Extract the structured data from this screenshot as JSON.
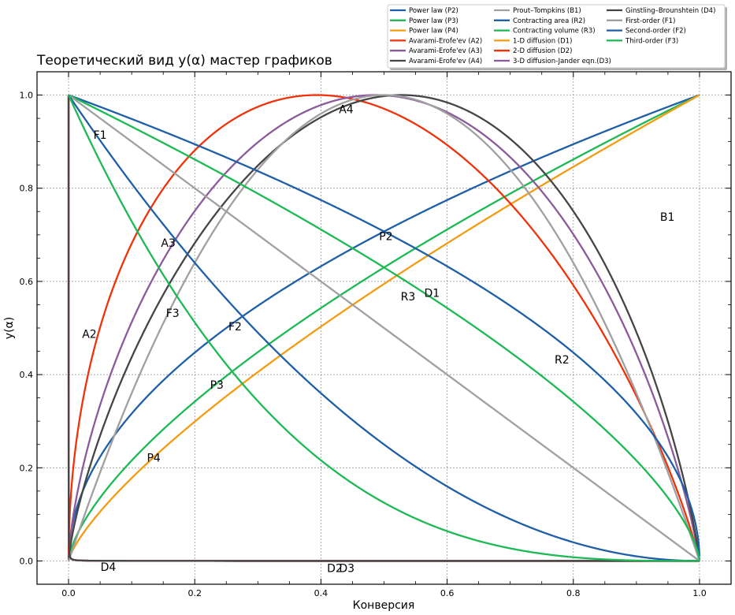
{
  "chart_data": {
    "type": "line",
    "title": "Теоретический вид y(α) мастер графиков",
    "xlabel": "Конверсия",
    "ylabel": "y(α)",
    "xlim": [
      -0.05,
      1.05
    ],
    "ylim": [
      -0.05,
      1.05
    ],
    "xticks": [
      "0.0",
      "0.2",
      "0.4",
      "0.6",
      "0.8",
      "1.0"
    ],
    "yticks": [
      "0.0",
      "0.2",
      "0.4",
      "0.6",
      "0.8",
      "1.0"
    ],
    "grid": true,
    "legend_placement": "top-right",
    "colors": {
      "blue": "#1f5fa8",
      "green": "#1db954",
      "orange": "#f39c12",
      "red": "#f0320a",
      "purple": "#8a5a9b",
      "dark": "#454545",
      "gray": "#a0a0a0"
    },
    "series": [
      {
        "name": "Power law (P2)",
        "color": "#1f5fa8",
        "formula": "P2"
      },
      {
        "name": "Power law (P3)",
        "color": "#1db954",
        "formula": "P3"
      },
      {
        "name": "Power law (P4)",
        "color": "#f39c12",
        "formula": "P4"
      },
      {
        "name": "Avarami-Erofe'ev (A2)",
        "color": "#f0320a",
        "formula": "A2"
      },
      {
        "name": "Avarami-Erofe'ev (A3)",
        "color": "#8a5a9b",
        "formula": "A3"
      },
      {
        "name": "Avarami-Erofe'ev (A4)",
        "color": "#454545",
        "formula": "A4"
      },
      {
        "name": "Prout–Tompkins (B1)",
        "color": "#a0a0a0",
        "formula": "B1"
      },
      {
        "name": "Contracting area (R2)",
        "color": "#1f5fa8",
        "formula": "R2"
      },
      {
        "name": "Contracting volume (R3)",
        "color": "#1db954",
        "formula": "R3"
      },
      {
        "name": "1-D diffusion (D1)",
        "color": "#f39c12",
        "formula": "D1"
      },
      {
        "name": "2-D diffusion (D2)",
        "color": "#f0320a",
        "formula": "D2"
      },
      {
        "name": "3-D diffusion-Jander eqn.(D3)",
        "color": "#8a5a9b",
        "formula": "D3"
      },
      {
        "name": "Ginstling–Brounshtein (D4)",
        "color": "#454545",
        "formula": "D4"
      },
      {
        "name": "First-order (F1)",
        "color": "#a0a0a0",
        "formula": "F1"
      },
      {
        "name": "Second-order (F2)",
        "color": "#1f5fa8",
        "formula": "F2"
      },
      {
        "name": "Third-order (F3)",
        "color": "#1db954",
        "formula": "F3"
      }
    ],
    "annotations": [
      {
        "text": "F1",
        "x": 0.05,
        "y": 0.915
      },
      {
        "text": "A4",
        "x": 0.44,
        "y": 0.97
      },
      {
        "text": "A3",
        "x": 0.158,
        "y": 0.683
      },
      {
        "text": "F3",
        "x": 0.165,
        "y": 0.532
      },
      {
        "text": "A2",
        "x": 0.033,
        "y": 0.487
      },
      {
        "text": "F2",
        "x": 0.264,
        "y": 0.503
      },
      {
        "text": "P3",
        "x": 0.235,
        "y": 0.378
      },
      {
        "text": "P4",
        "x": 0.135,
        "y": 0.222
      },
      {
        "text": "P2",
        "x": 0.503,
        "y": 0.697
      },
      {
        "text": "R3",
        "x": 0.538,
        "y": 0.568
      },
      {
        "text": "D1",
        "x": 0.576,
        "y": 0.575
      },
      {
        "text": "R2",
        "x": 0.782,
        "y": 0.432
      },
      {
        "text": "B1",
        "x": 0.949,
        "y": 0.739
      },
      {
        "text": "D4",
        "x": 0.063,
        "y": -0.013
      },
      {
        "text": "D2",
        "x": 0.422,
        "y": -0.015
      },
      {
        "text": "D3",
        "x": 0.441,
        "y": -0.015
      }
    ]
  }
}
